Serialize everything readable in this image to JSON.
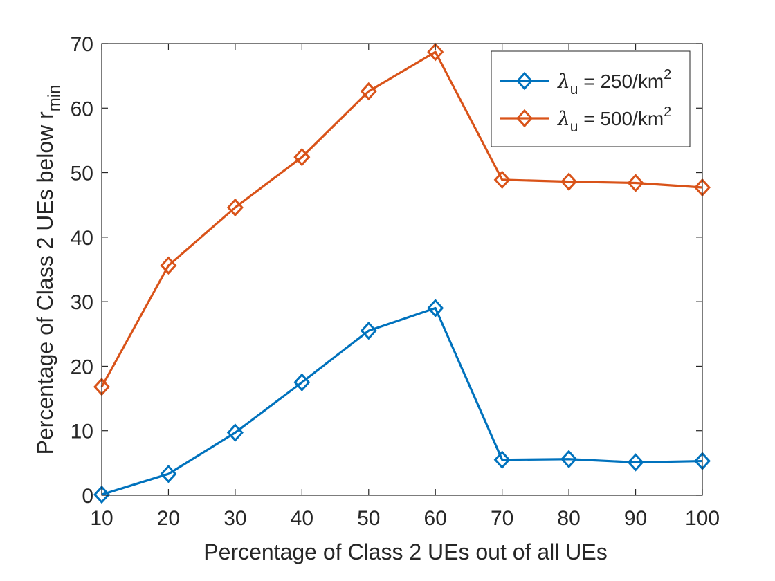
{
  "chart_data": {
    "type": "line",
    "xlabel": "Percentage of Class 2 UEs out of all UEs",
    "ylabel": {
      "main": "Percentage of Class 2 UEs below r",
      "sub": "min"
    },
    "xlim": [
      10,
      100
    ],
    "ylim": [
      0,
      70
    ],
    "x_ticks": [
      "10",
      "20",
      "30",
      "40",
      "50",
      "60",
      "70",
      "80",
      "90",
      "100"
    ],
    "y_ticks": [
      "0",
      "10",
      "20",
      "30",
      "40",
      "50",
      "60",
      "70"
    ],
    "x": [
      10,
      20,
      30,
      40,
      50,
      60,
      70,
      80,
      90,
      100
    ],
    "grid": false,
    "legend_position": "top-right",
    "marker": "diamond",
    "series": [
      {
        "name": {
          "symbol": "λ",
          "sub": "u",
          "rest": " = 250/km",
          "sup": "2"
        },
        "color": "#0072BD",
        "values": [
          0.1,
          3.3,
          9.7,
          17.5,
          25.5,
          29.0,
          5.5,
          5.6,
          5.1,
          5.3
        ]
      },
      {
        "name": {
          "symbol": "λ",
          "sub": "u",
          "rest": " = 500/km",
          "sup": "2"
        },
        "color": "#D95319",
        "values": [
          16.8,
          35.6,
          44.6,
          52.4,
          62.6,
          68.7,
          48.9,
          48.6,
          48.4,
          47.7
        ]
      }
    ]
  }
}
